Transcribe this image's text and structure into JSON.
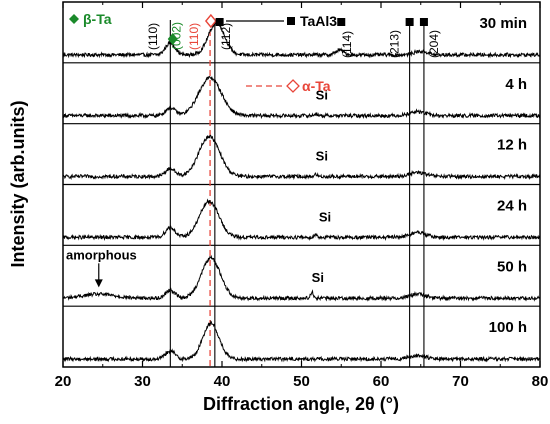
{
  "chart_data": {
    "type": "line",
    "title": "",
    "xlabel": "Diffraction angle, 2θ (°)",
    "ylabel": "Intensity (arb.units)",
    "xlim": [
      20,
      80
    ],
    "x_ticks": [
      "20",
      "30",
      "40",
      "50",
      "60",
      "70",
      "80"
    ],
    "grid": false,
    "legend": [
      {
        "marker": "filled-diamond",
        "label": "β-Ta",
        "color": "#1a8a2a"
      },
      {
        "marker": "filled-square",
        "label": "TaAl3",
        "color": "#000000"
      },
      {
        "marker": "open-diamond",
        "label": "α-Ta",
        "color": "#e8463a"
      }
    ],
    "series": [
      {
        "name": "30 min",
        "peaks": [
          {
            "x": 33.5,
            "height": 0.3,
            "width": 0.6
          },
          {
            "x": 39.3,
            "height": 0.8,
            "width": 1.0
          },
          {
            "x": 54.8,
            "height": 0.12,
            "width": 0.5
          },
          {
            "x": 64.5,
            "height": 0.06,
            "width": 0.6
          },
          {
            "x": 65.5,
            "height": 0.06,
            "width": 0.6
          }
        ]
      },
      {
        "name": "4 h",
        "peaks": [
          {
            "x": 33.5,
            "height": 0.2,
            "width": 0.6
          },
          {
            "x": 38.5,
            "height": 0.95,
            "width": 1.4
          },
          {
            "x": 51.8,
            "height": 0.05,
            "width": 0.2
          },
          {
            "x": 64.6,
            "height": 0.1,
            "width": 1.0
          }
        ]
      },
      {
        "name": "12 h",
        "peaks": [
          {
            "x": 33.5,
            "height": 0.2,
            "width": 0.6
          },
          {
            "x": 38.4,
            "height": 1.0,
            "width": 1.3
          },
          {
            "x": 51.8,
            "height": 0.05,
            "width": 0.2
          },
          {
            "x": 64.6,
            "height": 0.1,
            "width": 1.0
          }
        ]
      },
      {
        "name": "24 h",
        "peaks": [
          {
            "x": 33.5,
            "height": 0.25,
            "width": 0.6
          },
          {
            "x": 38.4,
            "height": 0.9,
            "width": 1.2
          },
          {
            "x": 51.8,
            "height": 0.07,
            "width": 0.2
          },
          {
            "x": 64.6,
            "height": 0.12,
            "width": 1.0
          }
        ]
      },
      {
        "name": "50 h",
        "peaks": [
          {
            "x": 24.5,
            "height": 0.1,
            "width": 2.0
          },
          {
            "x": 33.5,
            "height": 0.2,
            "width": 0.6
          },
          {
            "x": 38.6,
            "height": 1.0,
            "width": 1.2
          },
          {
            "x": 51.3,
            "height": 0.15,
            "width": 0.2
          },
          {
            "x": 64.6,
            "height": 0.1,
            "width": 1.0
          }
        ]
      },
      {
        "name": "100 h",
        "peaks": [
          {
            "x": 33.5,
            "height": 0.2,
            "width": 0.6
          },
          {
            "x": 38.6,
            "height": 0.9,
            "width": 1.0
          },
          {
            "x": 64.6,
            "height": 0.08,
            "width": 1.0
          }
        ]
      }
    ],
    "reference_lines": [
      {
        "x": 33.5,
        "style": "solid",
        "color": "#000000"
      },
      {
        "x": 39.1,
        "style": "solid",
        "color": "#000000"
      },
      {
        "x": 38.5,
        "style": "dashed",
        "color": "#e8463a"
      },
      {
        "x": 63.6,
        "style": "solid",
        "color": "#000000"
      },
      {
        "x": 65.4,
        "style": "solid",
        "color": "#000000"
      }
    ],
    "hkl_labels": [
      {
        "text": "(110)",
        "x": 31.8,
        "color": "#000000"
      },
      {
        "text": "(002)",
        "x": 34.8,
        "color": "#1a8a2a"
      },
      {
        "text": "(110)",
        "x": 37.0,
        "color": "#e8463a"
      },
      {
        "text": "(112)",
        "x": 41.0,
        "color": "#000000"
      },
      {
        "text": "(114)",
        "x": 56.2,
        "color": "#000000"
      },
      {
        "text": "(213)",
        "x": 62.2,
        "color": "#000000"
      },
      {
        "text": "(204)",
        "x": 67.2,
        "color": "#000000"
      }
    ],
    "markers": [
      {
        "shape": "filled-diamond",
        "x": 33.8,
        "color": "#1a8a2a"
      },
      {
        "shape": "open-diamond",
        "x": 38.6,
        "color": "#e8463a"
      },
      {
        "shape": "filled-square",
        "x": 39.7,
        "color": "#000000"
      },
      {
        "shape": "filled-square",
        "x": 55.0,
        "color": "#000000"
      },
      {
        "shape": "filled-square",
        "x": 63.6,
        "color": "#000000"
      },
      {
        "shape": "filled-square",
        "x": 65.4,
        "color": "#000000"
      }
    ],
    "annotations": [
      {
        "text": "Si",
        "series": "4 h",
        "x": 51.8
      },
      {
        "text": "Si",
        "series": "12 h",
        "x": 51.8
      },
      {
        "text": "Si",
        "series": "24 h",
        "x": 52.2
      },
      {
        "text": "Si",
        "series": "50 h",
        "x": 51.3
      },
      {
        "text": "amorphous",
        "series": "50 h",
        "x": 24.5
      }
    ]
  }
}
